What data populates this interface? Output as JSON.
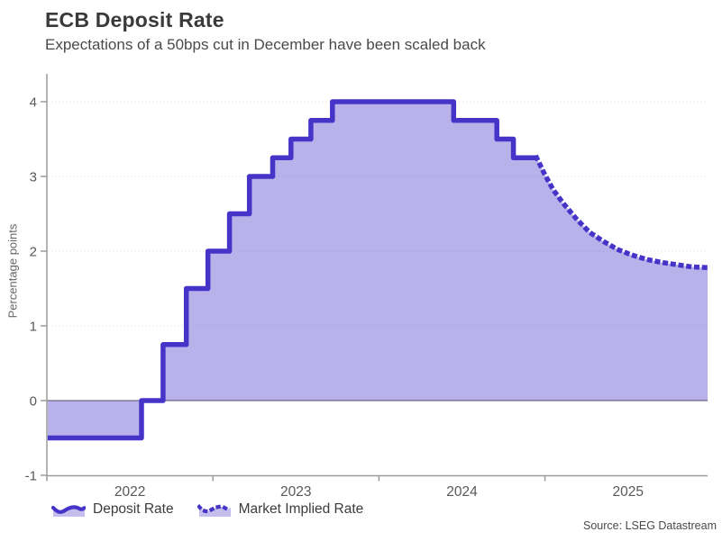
{
  "header": {
    "title": "ECB Deposit Rate",
    "subtitle": "Expectations of a 50bps cut in December have been scaled back"
  },
  "legend": {
    "items": [
      {
        "label": "Deposit Rate",
        "icon": "area-solid-line-icon",
        "style": "solid"
      },
      {
        "label": "Market Implied Rate",
        "icon": "area-dotted-line-icon",
        "style": "dotted"
      }
    ]
  },
  "source": "Source: LSEG Datastream",
  "chart_data": {
    "type": "area",
    "title": "ECB Deposit Rate",
    "subtitle": "Expectations of a 50bps cut in December have been scaled back",
    "xlabel": "",
    "ylabel": "Percentage points",
    "ylim": [
      -1,
      4.35
    ],
    "xlim": [
      2022.0,
      2025.98
    ],
    "yticks": [
      -1,
      0,
      1,
      2,
      3,
      4
    ],
    "xticks": [
      2022,
      2023,
      2024,
      2025
    ],
    "xtick_labels": [
      "2022",
      "2023",
      "2024",
      "2025"
    ],
    "grid": "dotted horizontal gridlines at 1,2,3,4; solid gray zero line",
    "legend_position": "bottom-left",
    "baseline": 0,
    "series": [
      {
        "name": "Deposit Rate",
        "mode": "step",
        "line": "solid",
        "points": [
          [
            2022.005,
            -0.5
          ],
          [
            2022.57,
            0.0
          ],
          [
            2022.7,
            0.75
          ],
          [
            2022.84,
            1.5
          ],
          [
            2022.97,
            2.0
          ],
          [
            2023.1,
            2.5
          ],
          [
            2023.22,
            3.0
          ],
          [
            2023.36,
            3.25
          ],
          [
            2023.47,
            3.5
          ],
          [
            2023.59,
            3.75
          ],
          [
            2023.72,
            4.0
          ],
          [
            2024.45,
            3.75
          ],
          [
            2024.71,
            3.5
          ],
          [
            2024.81,
            3.25
          ],
          [
            2024.95,
            3.25
          ]
        ]
      },
      {
        "name": "Market Implied Rate",
        "mode": "line",
        "line": "dotted",
        "points": [
          [
            2024.95,
            3.25
          ],
          [
            2025.0,
            3.02
          ],
          [
            2025.05,
            2.82
          ],
          [
            2025.11,
            2.64
          ],
          [
            2025.19,
            2.43
          ],
          [
            2025.27,
            2.25
          ],
          [
            2025.36,
            2.12
          ],
          [
            2025.44,
            2.02
          ],
          [
            2025.52,
            1.95
          ],
          [
            2025.61,
            1.89
          ],
          [
            2025.7,
            1.85
          ],
          [
            2025.79,
            1.82
          ],
          [
            2025.88,
            1.79
          ],
          [
            2025.98,
            1.78
          ]
        ]
      }
    ],
    "colors": {
      "line": "#4634c8",
      "fill_rgba": "rgba(70,52,200,0.38)",
      "axis": "#9b9b9b",
      "grid": "#dadada",
      "zero_line": "#aaaaaa",
      "tick_text": "#595959"
    }
  }
}
